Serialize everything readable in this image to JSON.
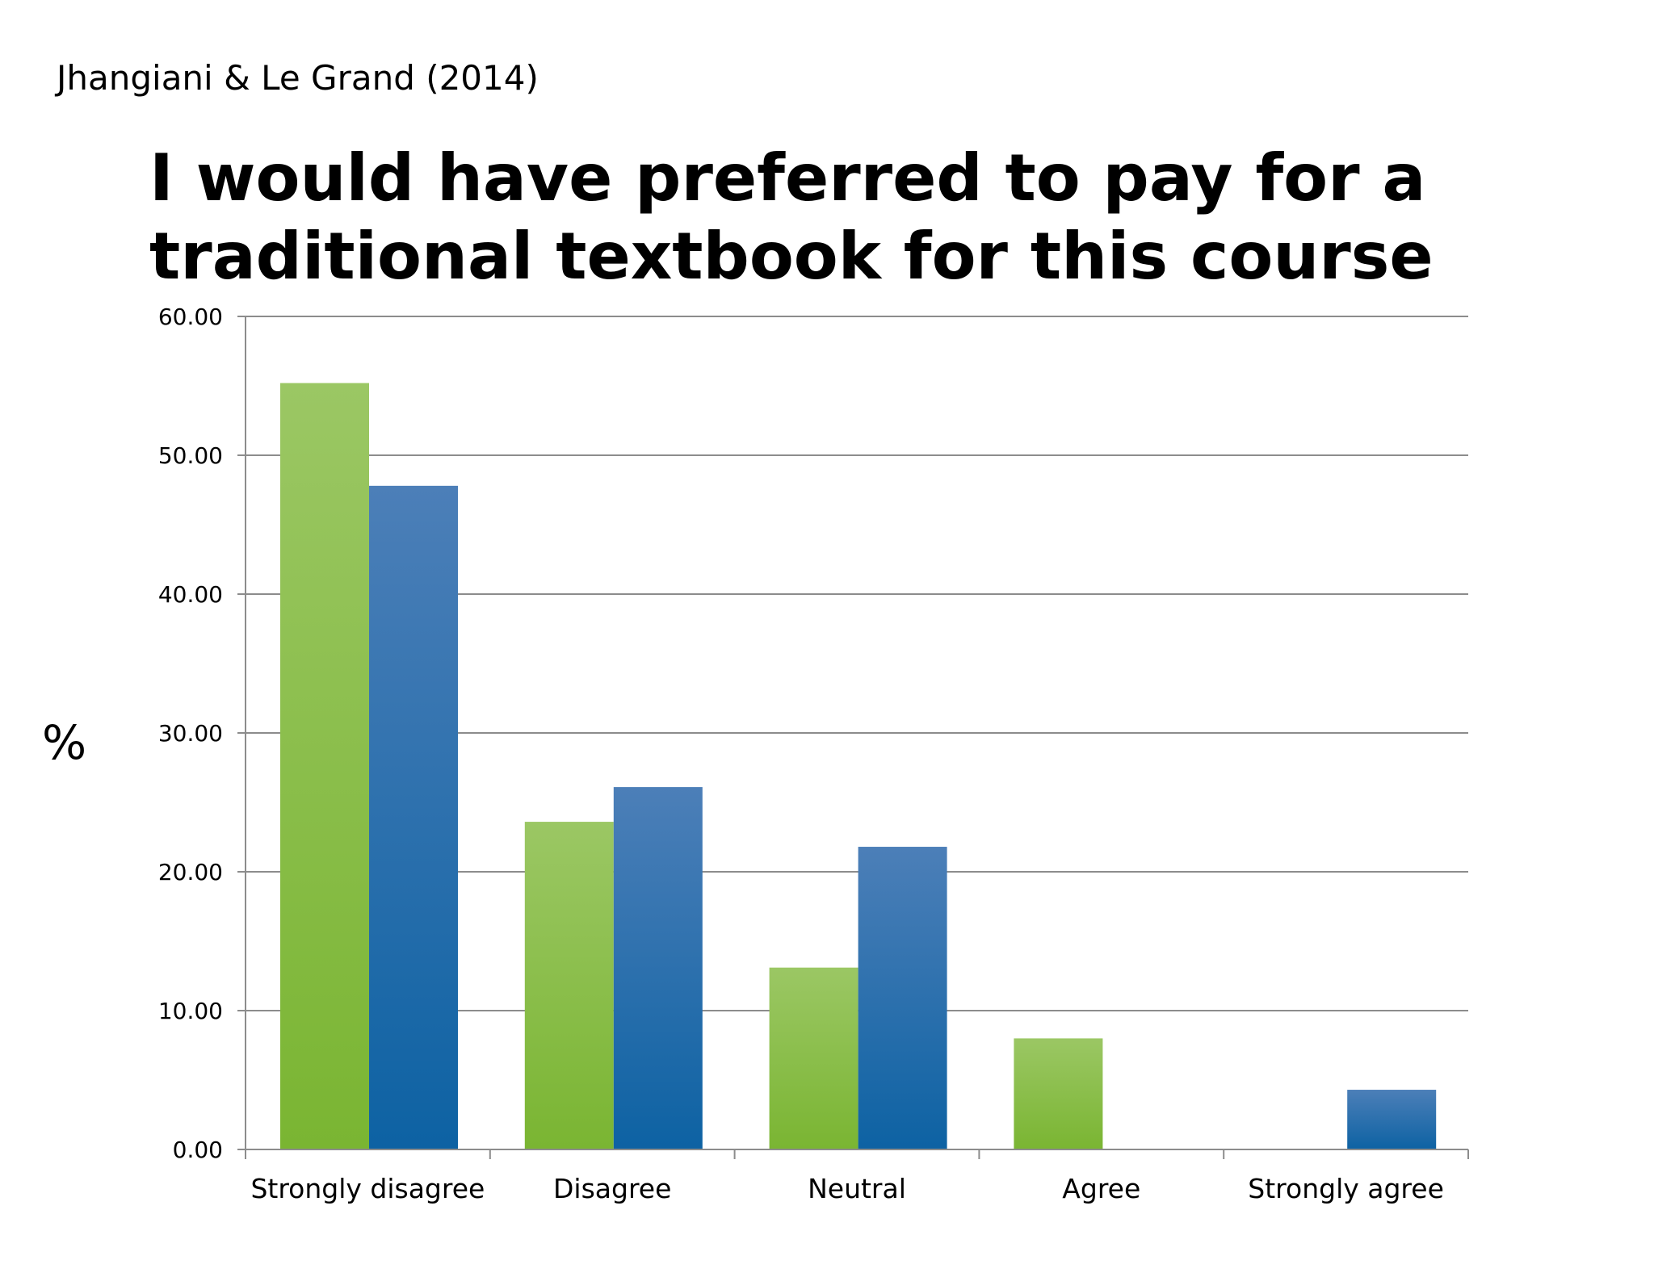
{
  "citation": "Jhangiani & Le Grand (2014)",
  "chart_data": {
    "type": "bar",
    "title": "I would have preferred to pay for a traditional textbook for this course",
    "xlabel": "",
    "ylabel": "%",
    "ylim": [
      0,
      60
    ],
    "yticks": [
      "0.00",
      "10.00",
      "20.00",
      "30.00",
      "40.00",
      "50.00",
      "60.00"
    ],
    "grid": true,
    "legend": "none",
    "categories": [
      "Strongly disagree",
      "Disagree",
      "Neutral",
      "Agree",
      "Strongly agree"
    ],
    "series": [
      {
        "values": [
          55.2,
          23.6,
          13.1,
          8.0,
          0
        ],
        "color_top": "#9BC764",
        "color_bottom": "#7AB532"
      },
      {
        "values": [
          47.8,
          26.1,
          21.8,
          0,
          4.3
        ],
        "color_top": "#4C7FB8",
        "color_bottom": "#0D62A3"
      }
    ]
  }
}
